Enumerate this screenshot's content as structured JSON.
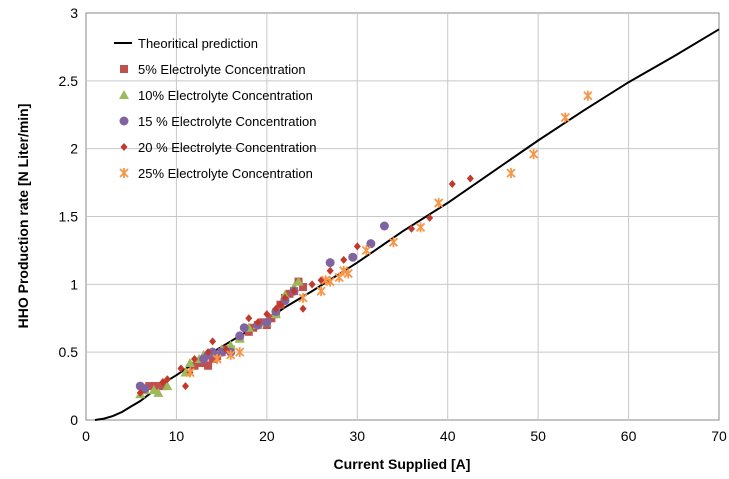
{
  "chart_data": {
    "type": "scatter",
    "title": "",
    "xlabel": "Current Supplied [A]",
    "ylabel": "HHO Production rate [N Liter/min]",
    "xlim": [
      0,
      70
    ],
    "ylim": [
      0,
      3
    ],
    "x_ticks": [
      0,
      10,
      20,
      30,
      40,
      50,
      60,
      70
    ],
    "y_ticks": [
      0,
      0.5,
      1,
      1.5,
      2,
      2.5,
      3
    ],
    "grid": true,
    "legend_position": "top-left",
    "series": [
      {
        "name": "Theoritical prediction",
        "type": "line",
        "color": "#000000",
        "points": [
          [
            1,
            0
          ],
          [
            2,
            0.01
          ],
          [
            3,
            0.03
          ],
          [
            4,
            0.06
          ],
          [
            5,
            0.1
          ],
          [
            6,
            0.14
          ],
          [
            7,
            0.19
          ],
          [
            8,
            0.24
          ],
          [
            9,
            0.29
          ],
          [
            10,
            0.33
          ],
          [
            12,
            0.42
          ],
          [
            14,
            0.5
          ],
          [
            16,
            0.58
          ],
          [
            18,
            0.66
          ],
          [
            20,
            0.74
          ],
          [
            22,
            0.83
          ],
          [
            25,
            0.95
          ],
          [
            30,
            1.16
          ],
          [
            35,
            1.39
          ],
          [
            40,
            1.6
          ],
          [
            45,
            1.83
          ],
          [
            50,
            2.06
          ],
          [
            55,
            2.28
          ],
          [
            60,
            2.49
          ],
          [
            65,
            2.68
          ],
          [
            70,
            2.88
          ]
        ]
      },
      {
        "name": "5% Electrolyte Concentration",
        "type": "scatter",
        "marker": "square",
        "color": "#c0504d",
        "points": [
          [
            6.5,
            0.22
          ],
          [
            7,
            0.25
          ],
          [
            7.5,
            0.25
          ],
          [
            8,
            0.25
          ],
          [
            8.5,
            0.25
          ],
          [
            12,
            0.4
          ],
          [
            12.5,
            0.42
          ],
          [
            13,
            0.42
          ],
          [
            13.5,
            0.4
          ],
          [
            14,
            0.45
          ],
          [
            14.5,
            0.47
          ],
          [
            15,
            0.5
          ],
          [
            15.5,
            0.52
          ],
          [
            16,
            0.52
          ],
          [
            17,
            0.6
          ],
          [
            18,
            0.65
          ],
          [
            18.5,
            0.68
          ],
          [
            19,
            0.7
          ],
          [
            19.5,
            0.72
          ],
          [
            20,
            0.7
          ],
          [
            20.5,
            0.75
          ],
          [
            21,
            0.78
          ],
          [
            21.5,
            0.85
          ],
          [
            22,
            0.9
          ],
          [
            22.5,
            0.93
          ],
          [
            23,
            0.95
          ],
          [
            23.5,
            1.02
          ],
          [
            24,
            0.98
          ]
        ]
      },
      {
        "name": "10% Electrolyte Concentration",
        "type": "scatter",
        "marker": "triangle",
        "color": "#9bbb59",
        "points": [
          [
            6,
            0.19
          ],
          [
            6.5,
            0.22
          ],
          [
            7.5,
            0.22
          ],
          [
            8,
            0.2
          ],
          [
            9,
            0.25
          ],
          [
            11,
            0.35
          ],
          [
            11.5,
            0.42
          ],
          [
            12.5,
            0.45
          ],
          [
            13,
            0.48
          ],
          [
            14,
            0.5
          ],
          [
            15,
            0.52
          ],
          [
            16,
            0.55
          ],
          [
            17,
            0.6
          ],
          [
            18,
            0.68
          ],
          [
            19,
            0.7
          ],
          [
            20,
            0.72
          ],
          [
            21,
            0.78
          ],
          [
            22,
            0.92
          ],
          [
            23,
            0.98
          ],
          [
            23.5,
            1.02
          ]
        ]
      },
      {
        "name": "15 % Electrolyte Concentration",
        "type": "scatter",
        "marker": "circle",
        "color": "#8064a2",
        "points": [
          [
            6,
            0.25
          ],
          [
            6.5,
            0.23
          ],
          [
            13,
            0.45
          ],
          [
            13.5,
            0.48
          ],
          [
            14,
            0.5
          ],
          [
            15,
            0.5
          ],
          [
            16,
            0.5
          ],
          [
            17,
            0.62
          ],
          [
            17.5,
            0.68
          ],
          [
            19,
            0.7
          ],
          [
            20,
            0.72
          ],
          [
            21,
            0.8
          ],
          [
            22,
            0.88
          ],
          [
            23,
            0.95
          ],
          [
            27,
            1.16
          ],
          [
            29.5,
            1.2
          ],
          [
            31.5,
            1.3
          ],
          [
            33,
            1.43
          ]
        ]
      },
      {
        "name": "20 % Electrolyte Concentration",
        "type": "scatter",
        "marker": "diamond",
        "color": "#c0392b",
        "points": [
          [
            6,
            0.2
          ],
          [
            8.5,
            0.28
          ],
          [
            9,
            0.3
          ],
          [
            10.5,
            0.38
          ],
          [
            11,
            0.25
          ],
          [
            11.5,
            0.35
          ],
          [
            12,
            0.45
          ],
          [
            13.5,
            0.5
          ],
          [
            14,
            0.58
          ],
          [
            15.5,
            0.52
          ],
          [
            18,
            0.75
          ],
          [
            19,
            0.72
          ],
          [
            20,
            0.78
          ],
          [
            21,
            0.82
          ],
          [
            21.5,
            0.85
          ],
          [
            22,
            0.9
          ],
          [
            23,
            0.95
          ],
          [
            24,
            0.82
          ],
          [
            25,
            1.0
          ],
          [
            26,
            1.03
          ],
          [
            27,
            1.1
          ],
          [
            28.5,
            1.18
          ],
          [
            30,
            1.28
          ],
          [
            36,
            1.41
          ],
          [
            38,
            1.49
          ],
          [
            40.5,
            1.74
          ],
          [
            42.5,
            1.78
          ]
        ]
      },
      {
        "name": "25% Electrolyte Concentration",
        "type": "scatter",
        "marker": "star",
        "color": "#f79646",
        "points": [
          [
            11.5,
            0.35
          ],
          [
            14.5,
            0.45
          ],
          [
            16,
            0.48
          ],
          [
            17,
            0.5
          ],
          [
            24,
            0.9
          ],
          [
            26,
            0.95
          ],
          [
            26.5,
            1.03
          ],
          [
            27,
            1.02
          ],
          [
            28,
            1.05
          ],
          [
            28.5,
            1.1
          ],
          [
            29,
            1.08
          ],
          [
            31,
            1.25
          ],
          [
            34,
            1.31
          ],
          [
            37,
            1.42
          ],
          [
            39,
            1.6
          ],
          [
            47,
            1.82
          ],
          [
            49.5,
            1.96
          ],
          [
            53,
            2.23
          ],
          [
            55.5,
            2.39
          ]
        ]
      }
    ]
  }
}
